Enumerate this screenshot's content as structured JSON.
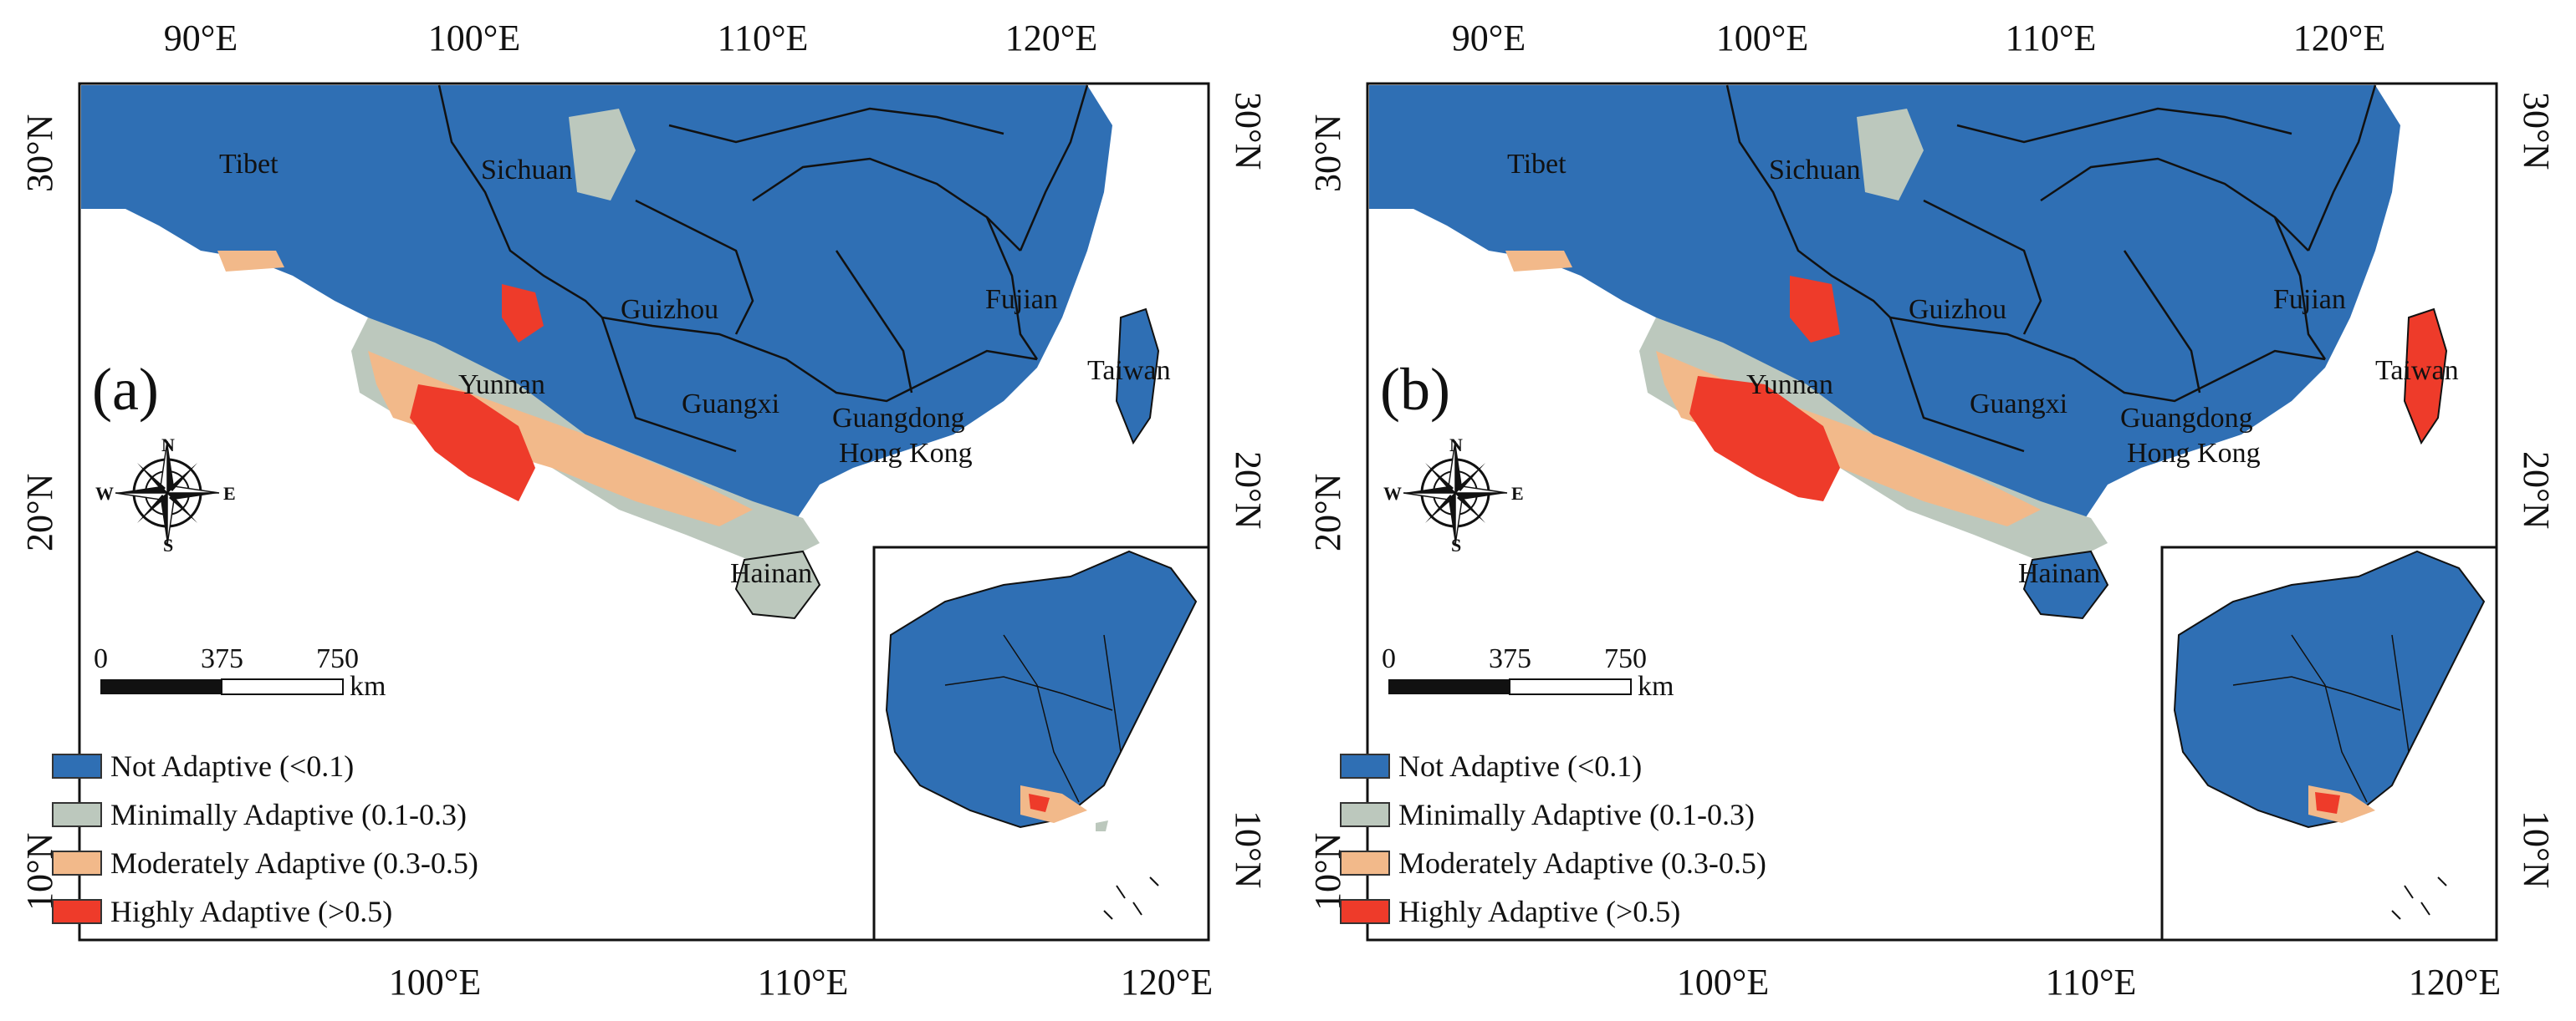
{
  "axes": {
    "top_ticks": [
      "90°E",
      "100°E",
      "110°E",
      "120°E"
    ],
    "bottom_ticks": [
      "100°E",
      "110°E",
      "120°E"
    ],
    "left_ticks": [
      "30°N",
      "20°N",
      "10°N"
    ],
    "right_ticks": [
      "30°N",
      "20°N",
      "10°N"
    ]
  },
  "regions": [
    "Tibet",
    "Sichuan",
    "Guizhou",
    "Fujian",
    "Yunnan",
    "Guangxi",
    "Guangdong",
    "Hong Kong",
    "Taiwan",
    "Hainan"
  ],
  "compass": {
    "n": "N",
    "s": "S",
    "e": "E",
    "w": "W"
  },
  "scale_bar": {
    "zero": "0",
    "mid": "375",
    "max": "750",
    "unit": "km"
  },
  "legend": [
    {
      "label": "Not Adaptive (<0.1)",
      "color": "#2f6fb4"
    },
    {
      "label": "Minimally Adaptive (0.1-0.3)",
      "color": "#bcc8bd"
    },
    {
      "label": "Moderately Adaptive (0.3-0.5)",
      "color": "#f2b98a"
    },
    {
      "label": "Highly Adaptive (>0.5)",
      "color": "#ee3b2a"
    }
  ],
  "panels": [
    {
      "label": "(a)"
    },
    {
      "label": "(b)"
    }
  ]
}
